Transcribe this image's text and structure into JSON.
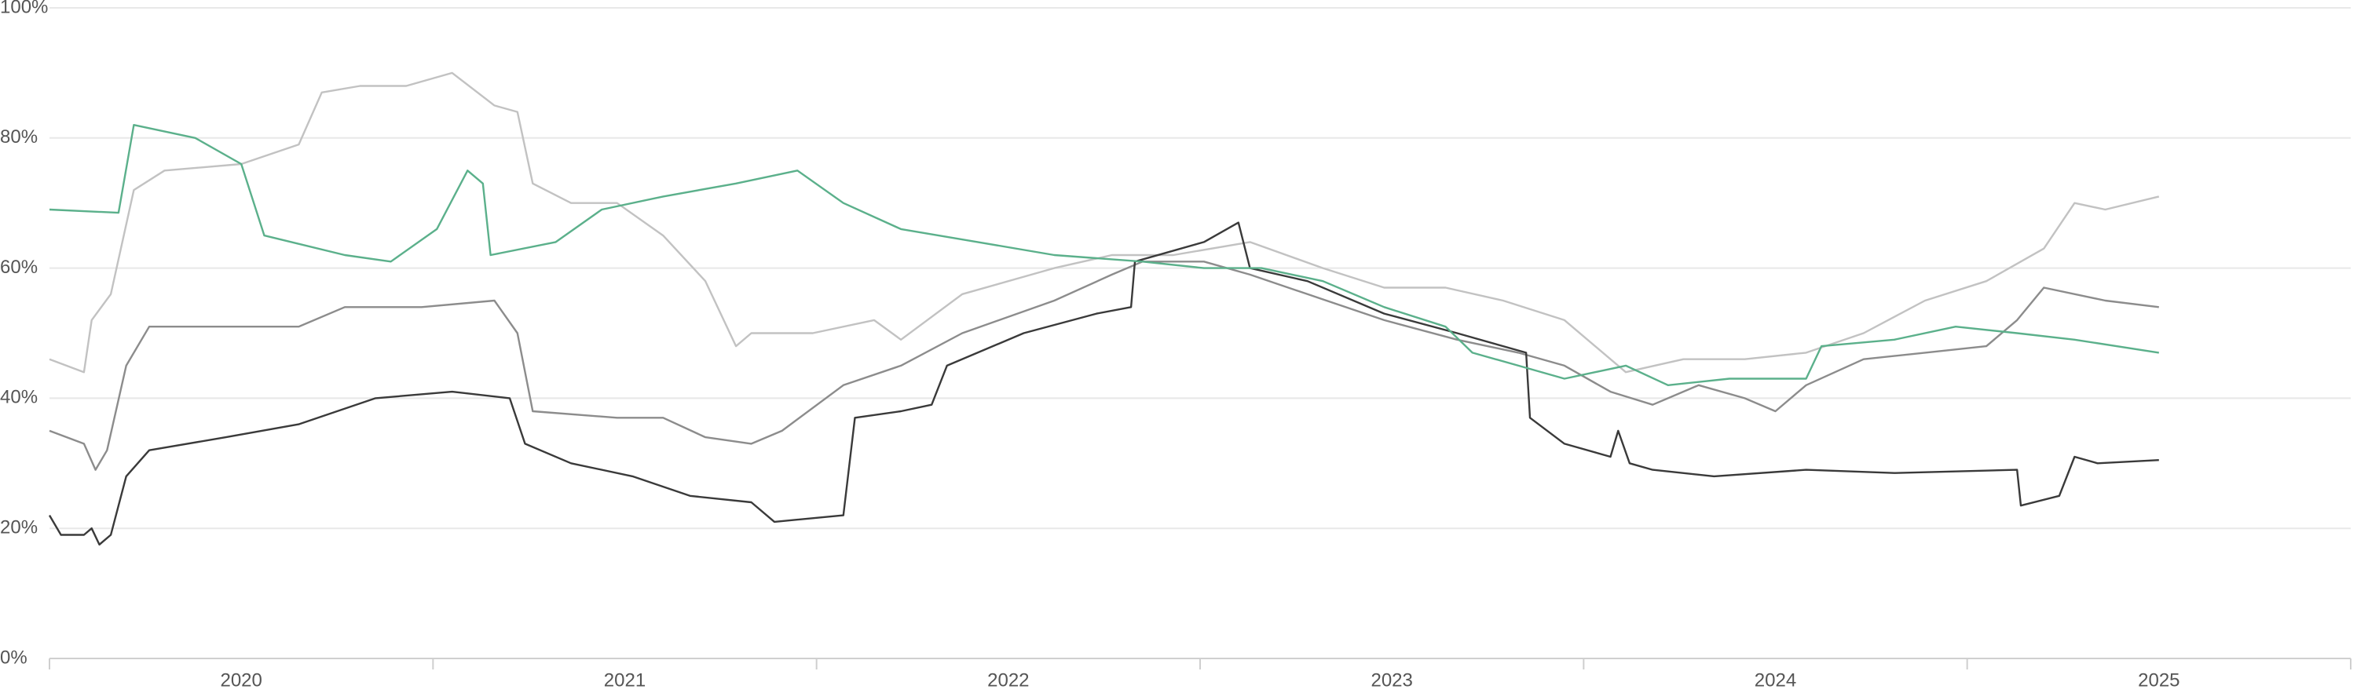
{
  "chart_data": {
    "type": "line",
    "xlim": [
      2020,
      2026
    ],
    "xticks": [
      {
        "value": 2020.5,
        "label": "2020"
      },
      {
        "value": 2021.5,
        "label": "2021"
      },
      {
        "value": 2022.5,
        "label": "2022"
      },
      {
        "value": 2023.5,
        "label": "2023"
      },
      {
        "value": 2024.5,
        "label": "2024"
      },
      {
        "value": 2025.5,
        "label": "2025"
      }
    ],
    "ylim": [
      0,
      100
    ],
    "yticks": [
      {
        "value": 0,
        "label": "0%"
      },
      {
        "value": 20,
        "label": "20%"
      },
      {
        "value": 40,
        "label": "40%"
      },
      {
        "value": 60,
        "label": "60%"
      },
      {
        "value": 80,
        "label": "80%"
      },
      {
        "value": 100,
        "label": "100%"
      }
    ],
    "grid": true,
    "series": [
      {
        "color": "#c2c2c2",
        "x": [
          2020.0,
          2020.09,
          2020.11,
          2020.16,
          2020.22,
          2020.3,
          2020.5,
          2020.65,
          2020.71,
          2020.81,
          2020.93,
          2021.05,
          2021.16,
          2021.22,
          2021.26,
          2021.36,
          2021.48,
          2021.6,
          2021.71,
          2021.79,
          2021.83,
          2021.99,
          2022.15,
          2022.22,
          2022.38,
          2022.62,
          2022.77,
          2022.93,
          2023.13,
          2023.32,
          2023.48,
          2023.64,
          2023.79,
          2023.95,
          2024.11,
          2024.26,
          2024.42,
          2024.58,
          2024.73,
          2024.89,
          2025.05,
          2025.2,
          2025.28,
          2025.36,
          2025.5
        ],
        "values": [
          46,
          44,
          52,
          56,
          72,
          75,
          76,
          79,
          87,
          88,
          88,
          90,
          85,
          84,
          73,
          70,
          70,
          65,
          58,
          48,
          50,
          50,
          52,
          49,
          56,
          60,
          62,
          62,
          64,
          60,
          57,
          57,
          55,
          52,
          44,
          46,
          46,
          47,
          50,
          55,
          58,
          63,
          70,
          69,
          71
        ]
      },
      {
        "color": "#8c8c8c",
        "x": [
          2020.0,
          2020.09,
          2020.12,
          2020.15,
          2020.2,
          2020.26,
          2020.46,
          2020.65,
          2020.77,
          2020.97,
          2021.16,
          2021.22,
          2021.26,
          2021.48,
          2021.6,
          2021.71,
          2021.83,
          2021.91,
          2022.07,
          2022.22,
          2022.38,
          2022.62,
          2022.77,
          2022.85,
          2023.01,
          2023.13,
          2023.28,
          2023.48,
          2023.67,
          2023.83,
          2023.95,
          2024.07,
          2024.18,
          2024.3,
          2024.42,
          2024.5,
          2024.58,
          2024.73,
          2024.89,
          2025.05,
          2025.13,
          2025.2,
          2025.36,
          2025.5
        ],
        "values": [
          35,
          33,
          29,
          32,
          45,
          51,
          51,
          51,
          54,
          54,
          55,
          50,
          38,
          37,
          37,
          34,
          33,
          35,
          42,
          45,
          50,
          55,
          59,
          61,
          61,
          59,
          56,
          52,
          49,
          47,
          45,
          41,
          39,
          42,
          40,
          38,
          42,
          46,
          47,
          48,
          52,
          57,
          55,
          54
        ]
      },
      {
        "color": "#3a3a3a",
        "x": [
          2020.0,
          2020.03,
          2020.09,
          2020.11,
          2020.13,
          2020.16,
          2020.2,
          2020.26,
          2020.46,
          2020.65,
          2020.85,
          2021.05,
          2021.2,
          2021.24,
          2021.36,
          2021.52,
          2021.67,
          2021.83,
          2021.89,
          2022.07,
          2022.1,
          2022.22,
          2022.3,
          2022.34,
          2022.54,
          2022.73,
          2022.82,
          2022.83,
          2023.01,
          2023.1,
          2023.13,
          2023.28,
          2023.48,
          2023.67,
          2023.85,
          2023.86,
          2023.95,
          2024.07,
          2024.09,
          2024.12,
          2024.18,
          2024.34,
          2024.58,
          2024.81,
          2025.13,
          2025.14,
          2025.24,
          2025.28,
          2025.34,
          2025.5
        ],
        "values": [
          22,
          19,
          19,
          20,
          17.5,
          19,
          28,
          32,
          34,
          36,
          40,
          41,
          40,
          33,
          30,
          28,
          25,
          24,
          21,
          22,
          37,
          38,
          39,
          45,
          50,
          53,
          54,
          61,
          64,
          67,
          60,
          58,
          53,
          50,
          47,
          37,
          33,
          31,
          35,
          30,
          29,
          28,
          29,
          28.5,
          29,
          23.5,
          25,
          31,
          30,
          30.5
        ]
      },
      {
        "color": "#5bb08b",
        "x": [
          2020.0,
          2020.18,
          2020.22,
          2020.38,
          2020.5,
          2020.56,
          2020.77,
          2020.89,
          2021.01,
          2021.09,
          2021.13,
          2021.15,
          2021.32,
          2021.44,
          2021.6,
          2021.79,
          2021.95,
          2022.07,
          2022.22,
          2022.42,
          2022.62,
          2022.85,
          2023.01,
          2023.16,
          2023.32,
          2023.48,
          2023.64,
          2023.71,
          2023.83,
          2023.95,
          2024.11,
          2024.22,
          2024.38,
          2024.58,
          2024.62,
          2024.81,
          2024.97,
          2025.13,
          2025.28,
          2025.5
        ],
        "values": [
          69,
          68.5,
          82,
          80,
          76,
          65,
          62,
          61,
          66,
          75,
          73,
          62,
          64,
          69,
          71,
          73,
          75,
          70,
          66,
          64,
          62,
          61,
          60,
          60,
          58,
          54,
          51,
          47,
          45,
          43,
          45,
          42,
          43,
          43,
          48,
          49,
          51,
          50,
          49,
          47
        ]
      }
    ]
  }
}
